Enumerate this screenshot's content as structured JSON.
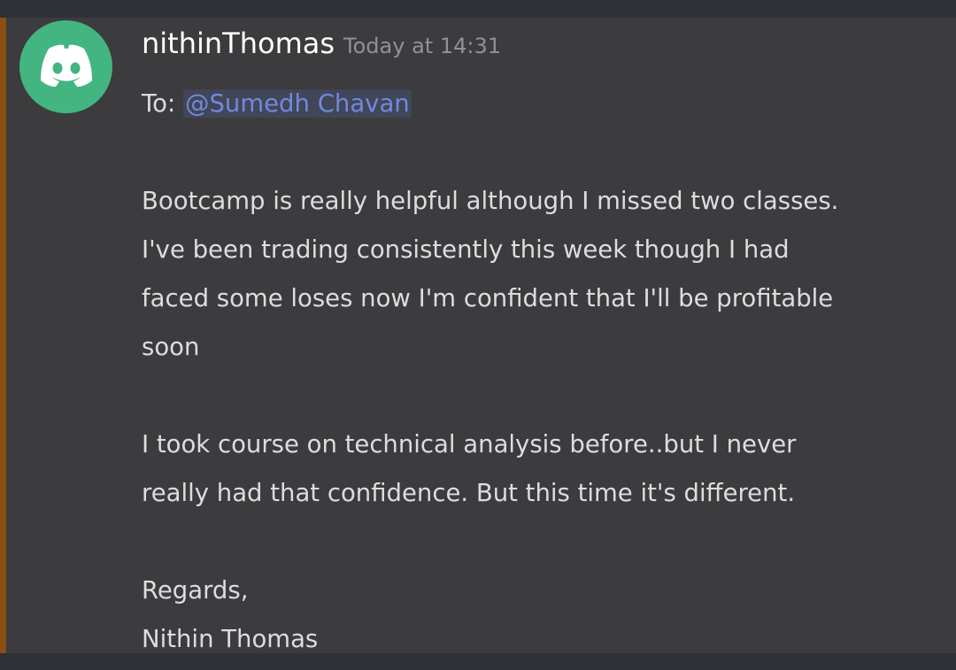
{
  "message": {
    "author": "nithinThomas",
    "timestamp": "Today at 14:31",
    "to_label": "To:",
    "mention": "@Sumedh Chavan",
    "paragraph1_lines": [
      "Bootcamp is really helpful although I missed two classes.",
      "I've been trading consistently this week though I had",
      "faced some loses now I'm confident that I'll be profitable",
      "soon"
    ],
    "paragraph2_lines": [
      "I took course on technical analysis before..but I never",
      "really had that confidence. But this time it's different."
    ],
    "signoff": "Regards,",
    "signature": "Nithin Thomas"
  },
  "avatar": {
    "icon": "discord-logo-icon",
    "color": "#43b581"
  },
  "colors": {
    "background": "#3c3b3d",
    "highlight_bar": "#8a4d12",
    "mention_text": "#7289da",
    "mention_bg": "#414658",
    "timestamp": "#8e9297",
    "body_text": "#dcddde"
  }
}
